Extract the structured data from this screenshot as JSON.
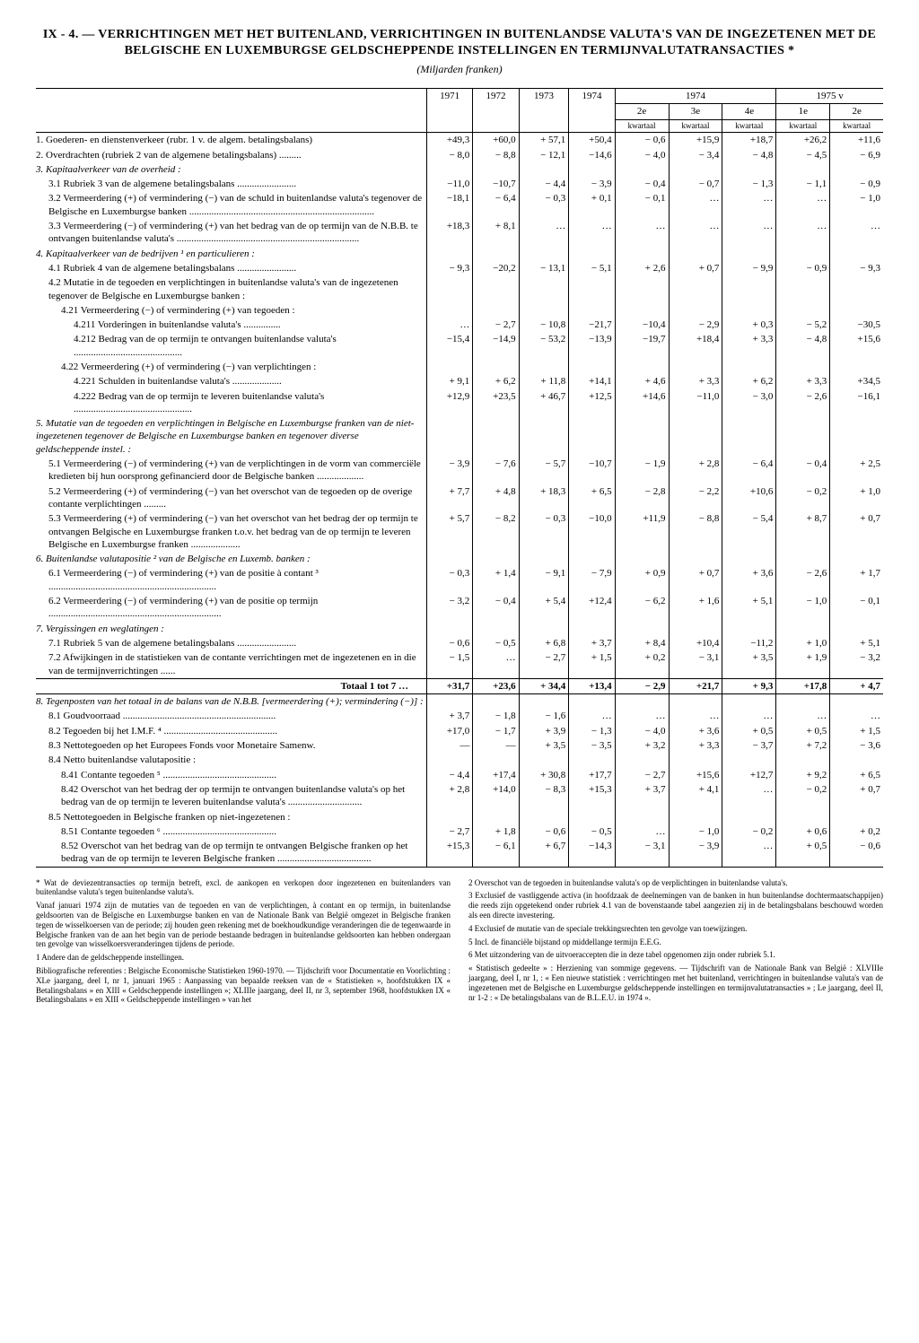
{
  "title": "IX - 4. — VERRICHTINGEN MET HET BUITENLAND, VERRICHTINGEN IN BUITENLANDSE VALUTA'S VAN DE INGEZETENEN MET DE BELGISCHE EN LUXEMBURGSE GELDSCHEPPENDE INSTELLINGEN EN TERMIJNVALUTATRANSACTIES *",
  "unit": "(Miljarden franken)",
  "headers": {
    "y1971": "1971",
    "y1972": "1972",
    "y1973": "1973",
    "y1974": "1974",
    "g1974": "1974",
    "g1975": "1975 v",
    "q2": "2e",
    "q3": "3e",
    "q4": "4e",
    "q1n": "1e",
    "q2n": "2e",
    "kw": "kwartaal"
  },
  "rows": [
    {
      "k": "r1",
      "label": "1. Goederen- en dienstenverkeer (rubr. 1 v. de algem. betalingsbalans)",
      "i": 0,
      "v": [
        "+49,3",
        "+60,0",
        "+ 57,1",
        "+50,4",
        "− 0,6",
        "+15,9",
        "+18,7",
        "+26,2",
        "+11,6"
      ]
    },
    {
      "k": "r2",
      "label": "2. Overdrachten (rubriek 2 van de algemene betalingsbalans) .........",
      "i": 0,
      "v": [
        "− 8,0",
        "− 8,8",
        "− 12,1",
        "−14,6",
        "− 4,0",
        "− 3,4",
        "− 4,8",
        "− 4,5",
        "− 6,9"
      ]
    },
    {
      "k": "r3",
      "label": "3. Kapitaalverkeer van de overheid :",
      "i": 0,
      "sec": true,
      "v": [
        "",
        "",
        "",
        "",
        "",
        "",
        "",
        "",
        ""
      ]
    },
    {
      "k": "r31",
      "label": "3.1 Rubriek 3 van de algemene betalingsbalans ........................",
      "i": 1,
      "v": [
        "−11,0",
        "−10,7",
        "− 4,4",
        "− 3,9",
        "− 0,4",
        "− 0,7",
        "− 1,3",
        "− 1,1",
        "− 0,9"
      ]
    },
    {
      "k": "r32",
      "label": "3.2 Vermeerdering (+) of vermindering (−) van de schuld in buitenlandse valuta's tegenover de Belgische en Luxemburgse banken ...........................................................................",
      "i": 1,
      "v": [
        "−18,1",
        "− 6,4",
        "− 0,3",
        "+ 0,1",
        "− 0,1",
        "…",
        "…",
        "…",
        "− 1,0"
      ]
    },
    {
      "k": "r33",
      "label": "3.3 Vermeerdering (−) of vermindering (+) van het bedrag van de op termijn van de N.B.B. te ontvangen buitenlandse valuta's ..........................................................................",
      "i": 1,
      "v": [
        "+18,3",
        "+ 8,1",
        "…",
        "…",
        "…",
        "…",
        "…",
        "…",
        "…"
      ]
    },
    {
      "k": "r4",
      "label": "4. Kapitaalverkeer van de bedrijven ¹ en particulieren :",
      "i": 0,
      "sec": true,
      "v": [
        "",
        "",
        "",
        "",
        "",
        "",
        "",
        "",
        ""
      ]
    },
    {
      "k": "r41",
      "label": "4.1 Rubriek 4 van de algemene betalingsbalans ........................",
      "i": 1,
      "v": [
        "− 9,3",
        "−20,2",
        "− 13,1",
        "− 5,1",
        "+ 2,6",
        "+ 0,7",
        "− 9,9",
        "− 0,9",
        "− 9,3"
      ]
    },
    {
      "k": "r42",
      "label": "4.2 Mutatie in de tegoeden en verplichtingen in buitenlandse valuta's van de ingezetenen tegenover de Belgische en Luxemburgse banken :",
      "i": 1,
      "v": [
        "",
        "",
        "",
        "",
        "",
        "",
        "",
        "",
        ""
      ]
    },
    {
      "k": "r421",
      "label": "4.21 Vermeerdering (−) of vermindering (+) van tegoeden :",
      "i": 2,
      "v": [
        "",
        "",
        "",
        "",
        "",
        "",
        "",
        "",
        ""
      ]
    },
    {
      "k": "r4211",
      "label": "4.211 Vorderingen in buitenlandse valuta's ...............",
      "i": 3,
      "v": [
        "…",
        "− 2,7",
        "− 10,8",
        "−21,7",
        "−10,4",
        "− 2,9",
        "+ 0,3",
        "− 5,2",
        "−30,5"
      ]
    },
    {
      "k": "r4212",
      "label": "4.212 Bedrag van de op termijn te ontvangen buitenlandse valuta's ............................................",
      "i": 3,
      "v": [
        "−15,4",
        "−14,9",
        "− 53,2",
        "−13,9",
        "−19,7",
        "+18,4",
        "+ 3,3",
        "− 4,8",
        "+15,6"
      ]
    },
    {
      "k": "r422",
      "label": "4.22 Vermeerdering (+) of vermindering (−) van verplichtingen :",
      "i": 2,
      "v": [
        "",
        "",
        "",
        "",
        "",
        "",
        "",
        "",
        ""
      ]
    },
    {
      "k": "r4221",
      "label": "4.221 Schulden in buitenlandse valuta's ....................",
      "i": 3,
      "v": [
        "+ 9,1",
        "+ 6,2",
        "+ 11,8",
        "+14,1",
        "+ 4,6",
        "+ 3,3",
        "+ 6,2",
        "+ 3,3",
        "+34,5"
      ]
    },
    {
      "k": "r4222",
      "label": "4.222 Bedrag van de op termijn te leveren buitenlandse valuta's ................................................",
      "i": 3,
      "v": [
        "+12,9",
        "+23,5",
        "+ 46,7",
        "+12,5",
        "+14,6",
        "−11,0",
        "− 3,0",
        "− 2,6",
        "−16,1"
      ]
    },
    {
      "k": "r5",
      "label": "5. Mutatie van de tegoeden en verplichtingen in Belgische en Luxemburgse franken van de niet-ingezetenen tegenover de Belgische en Luxemburgse banken en tegenover diverse geldscheppende instel. :",
      "i": 0,
      "sec": true,
      "v": [
        "",
        "",
        "",
        "",
        "",
        "",
        "",
        "",
        ""
      ]
    },
    {
      "k": "r51",
      "label": "5.1 Vermeerdering (−) of vermindering (+) van de verplichtingen in de vorm van commerciële kredieten bij hun oorsprong gefinancierd door de Belgische banken ...................",
      "i": 1,
      "v": [
        "− 3,9",
        "− 7,6",
        "− 5,7",
        "−10,7",
        "− 1,9",
        "+ 2,8",
        "− 6,4",
        "− 0,4",
        "+ 2,5"
      ]
    },
    {
      "k": "r52",
      "label": "5.2 Vermeerdering (+) of vermindering (−) van het overschot van de tegoeden op de overige contante verplichtingen .........",
      "i": 1,
      "v": [
        "+ 7,7",
        "+ 4,8",
        "+ 18,3",
        "+ 6,5",
        "− 2,8",
        "− 2,2",
        "+10,6",
        "− 0,2",
        "+ 1,0"
      ]
    },
    {
      "k": "r53",
      "label": "5.3 Vermeerdering (+) of vermindering (−) van het overschot van het bedrag der op termijn te ontvangen Belgische en Luxemburgse franken t.o.v. het bedrag van de op termijn te leveren Belgische en Luxemburgse franken ....................",
      "i": 1,
      "v": [
        "+ 5,7",
        "− 8,2",
        "− 0,3",
        "−10,0",
        "+11,9",
        "− 8,8",
        "− 5,4",
        "+ 8,7",
        "+ 0,7"
      ]
    },
    {
      "k": "r6",
      "label": "6. Buitenlandse valutapositie ² van de Belgische en Luxemb. banken :",
      "i": 0,
      "sec": true,
      "v": [
        "",
        "",
        "",
        "",
        "",
        "",
        "",
        "",
        ""
      ]
    },
    {
      "k": "r61",
      "label": "6.1 Vermeerdering (−) of vermindering (+) van de positie à contant ³ ....................................................................",
      "i": 1,
      "v": [
        "− 0,3",
        "+ 1,4",
        "− 9,1",
        "− 7,9",
        "+ 0,9",
        "+ 0,7",
        "+ 3,6",
        "− 2,6",
        "+ 1,7"
      ]
    },
    {
      "k": "r62",
      "label": "6.2 Vermeerdering (−) of vermindering (+) van de positie op termijn ......................................................................",
      "i": 1,
      "v": [
        "− 3,2",
        "− 0,4",
        "+ 5,4",
        "+12,4",
        "− 6,2",
        "+ 1,6",
        "+ 5,1",
        "− 1,0",
        "− 0,1"
      ]
    },
    {
      "k": "r7",
      "label": "7. Vergissingen en weglatingen :",
      "i": 0,
      "sec": true,
      "v": [
        "",
        "",
        "",
        "",
        "",
        "",
        "",
        "",
        ""
      ]
    },
    {
      "k": "r71",
      "label": "7.1 Rubriek 5 van de algemene betalingsbalans ........................",
      "i": 1,
      "v": [
        "− 0,6",
        "− 0,5",
        "+ 6,8",
        "+ 3,7",
        "+ 8,4",
        "+10,4",
        "−11,2",
        "+ 1,0",
        "+ 5,1"
      ]
    },
    {
      "k": "r72",
      "label": "7.2 Afwijkingen in de statistieken van de contante verrichtingen met de ingezetenen en in die van de termijnverrichtingen ......",
      "i": 1,
      "v": [
        "− 1,5",
        "…",
        "− 2,7",
        "+ 1,5",
        "+ 0,2",
        "− 3,1",
        "+ 3,5",
        "+ 1,9",
        "− 3,2"
      ]
    },
    {
      "k": "tot",
      "label": "Totaal 1 tot 7 …",
      "i": 0,
      "tot": true,
      "v": [
        "+31,7",
        "+23,6",
        "+ 34,4",
        "+13,4",
        "− 2,9",
        "+21,7",
        "+ 9,3",
        "+17,8",
        "+ 4,7"
      ]
    },
    {
      "k": "r8",
      "label": "8. Tegenposten van het totaal in de balans van de N.B.B. [vermeerdering (+); vermindering (−)] :",
      "i": 0,
      "sec": true,
      "v": [
        "",
        "",
        "",
        "",
        "",
        "",
        "",
        "",
        ""
      ]
    },
    {
      "k": "r81",
      "label": "8.1 Goudvoorraad ..............................................................",
      "i": 1,
      "v": [
        "+ 3,7",
        "− 1,8",
        "− 1,6",
        "…",
        "…",
        "…",
        "…",
        "…",
        "…"
      ]
    },
    {
      "k": "r82",
      "label": "8.2 Tegoeden bij het I.M.F. ⁴ ..............................................",
      "i": 1,
      "v": [
        "+17,0",
        "− 1,7",
        "+ 3,9",
        "− 1,3",
        "− 4,0",
        "+ 3,6",
        "+ 0,5",
        "+ 0,5",
        "+ 1,5"
      ]
    },
    {
      "k": "r83",
      "label": "8.3 Nettotegoeden op het Europees Fonds voor Monetaire Samenw.",
      "i": 1,
      "v": [
        "—",
        "—",
        "+ 3,5",
        "− 3,5",
        "+ 3,2",
        "+ 3,3",
        "− 3,7",
        "+ 7,2",
        "− 3,6"
      ]
    },
    {
      "k": "r84",
      "label": "8.4 Netto buitenlandse valutapositie :",
      "i": 1,
      "v": [
        "",
        "",
        "",
        "",
        "",
        "",
        "",
        "",
        ""
      ]
    },
    {
      "k": "r841",
      "label": "8.41 Contante tegoeden ⁵ ..............................................",
      "i": 2,
      "v": [
        "− 4,4",
        "+17,4",
        "+ 30,8",
        "+17,7",
        "− 2,7",
        "+15,6",
        "+12,7",
        "+ 9,2",
        "+ 6,5"
      ]
    },
    {
      "k": "r842",
      "label": "8.42 Overschot van het bedrag der op termijn te ontvangen buitenlandse valuta's op het bedrag van de op termijn te leveren buitenlandse valuta's ..............................",
      "i": 2,
      "v": [
        "+ 2,8",
        "+14,0",
        "− 8,3",
        "+15,3",
        "+ 3,7",
        "+ 4,1",
        "…",
        "− 0,2",
        "+ 0,7"
      ]
    },
    {
      "k": "r85",
      "label": "8.5 Nettotegoeden in Belgische franken op niet-ingezetenen :",
      "i": 1,
      "v": [
        "",
        "",
        "",
        "",
        "",
        "",
        "",
        "",
        ""
      ]
    },
    {
      "k": "r851",
      "label": "8.51 Contante tegoeden ⁶ ..............................................",
      "i": 2,
      "v": [
        "− 2,7",
        "+ 1,8",
        "− 0,6",
        "− 0,5",
        "…",
        "− 1,0",
        "− 0,2",
        "+ 0,6",
        "+ 0,2"
      ]
    },
    {
      "k": "r852",
      "label": "8.52 Overschot van het bedrag van de op termijn te ontvangen Belgische franken op het bedrag van de op termijn te leveren Belgische franken ......................................",
      "i": 2,
      "v": [
        "+15,3",
        "− 6,1",
        "+ 6,7",
        "−14,3",
        "− 3,1",
        "− 3,9",
        "…",
        "+ 0,5",
        "− 0,6"
      ]
    }
  ],
  "footnotes_left": [
    "* Wat de deviezentransacties op termijn betreft, excl. de aankopen en verkopen door ingezetenen en buitenlanders van buitenlandse valuta's tegen buitenlandse valuta's.",
    "Vanaf januari 1974 zijn de mutaties van de tegoeden en van de verplichtingen, à contant en op termijn, in buitenlandse geldsoorten van de Belgische en Luxemburgse banken en van de Nationale Bank van België omgezet in Belgische franken tegen de wisselkoersen van de periode; zij houden geen rekening met de boekhoudkundige veranderingen die de tegenwaarde in Belgische franken van de aan het begin van de periode bestaande bedragen in buitenlandse geldsoorten kan hebben ondergaan ten gevolge van wisselkoersveranderingen tijdens de periode.",
    "1 Andere dan de geldscheppende instellingen.",
    "Bibliografische referenties : Belgische Economische Statistieken 1960-1970. — Tijdschrift voor Documentatie en Voorlichting : XLe jaargang, deel I, nr 1, januari 1965 : Aanpassing van bepaalde reeksen van de « Statistieken », hoofdstukken IX « Betalingsbalans » en XIII « Geldscheppende instellingen »; XLIIIe jaargang, deel II, nr 3, september 1968, hoofdstukken IX « Betalingsbalans » en XIII « Geldscheppende instellingen » van het"
  ],
  "footnotes_right": [
    "2 Overschot van de tegoeden in buitenlandse valuta's op de verplichtingen in buitenlandse valuta's.",
    "3 Exclusief de vastliggende activa (in hoofdzaak de deelnemingen van de banken in hun buitenlandse dochtermaatschappijen) die reeds zijn opgetekend onder rubriek 4.1 van de bovenstaande tabel aangezien zij in de betalingsbalans beschouwd worden als een directe investering.",
    "4 Exclusief de mutatie van de speciale trekkingsrechten ten gevolge van toewijzingen.",
    "5 Incl. de financiële bijstand op middellange termijn E.E.G.",
    "6 Met uitzondering van de uitvoeraccepten die in deze tabel opgenomen zijn onder rubriek 5.1.",
    "« Statistisch gedeelte » : Herziening van sommige gegevens. — Tijdschrift van de Nationale Bank van België : XLVIIIe jaargang, deel I, nr 1, : « Een nieuwe statistiek : verrichtingen met het buitenland, verrichtingen in buitenlandse valuta's van de ingezetenen met de Belgische en Luxemburgse geldscheppende instellingen en termijnvalutatransacties » ; Le jaargang, deel II, nr 1-2 : « De betalingsbalans van de B.L.E.U. in 1974 »."
  ]
}
